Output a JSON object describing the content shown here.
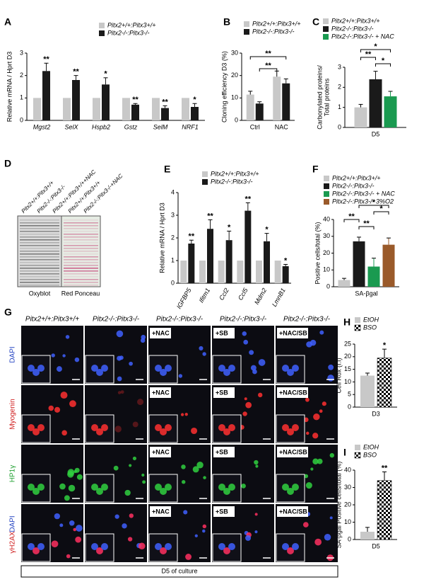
{
  "chart_data": [
    {
      "type": "bar",
      "label": "A",
      "ylabel": [
        "Relative mRNA / Hprt D3"
      ],
      "italic": true,
      "categories": [
        "Mgst2",
        "SelX",
        "Hspb2",
        "Gstz",
        "SelM",
        "NRF1"
      ],
      "series": [
        {
          "name": "Pitx2+/+:Pitx3+/+",
          "color": "#c8c8c8",
          "values": [
            1,
            1,
            1,
            1,
            1,
            1
          ],
          "errors": [
            0,
            0,
            0,
            0,
            0,
            0
          ]
        },
        {
          "name": "Pitx2-/-:Pitx3-/-",
          "color": "#1a1a1a",
          "values": [
            2.2,
            1.8,
            1.6,
            0.7,
            0.55,
            0.6
          ],
          "errors": [
            0.35,
            0.2,
            0.3,
            0.05,
            0.1,
            0.15
          ]
        }
      ],
      "annotations": [
        "**",
        "**",
        "*",
        "**",
        "**",
        "*"
      ],
      "ylim": [
        0,
        3
      ],
      "yticks": [
        0,
        1,
        2,
        3
      ]
    },
    {
      "type": "bar",
      "label": "B",
      "ylabel": [
        "Cloning efficiency D3 (%)"
      ],
      "italic": false,
      "categories": [
        "Ctrl",
        "NAC"
      ],
      "series": [
        {
          "name": "Pitx2+/+:Pitx3+/+",
          "color": "#c8c8c8",
          "values": [
            11.5,
            19.5
          ],
          "errors": [
            1.5,
            2.5
          ]
        },
        {
          "name": "Pitx2-/-:Pitx3-/-",
          "color": "#1a1a1a",
          "values": [
            7.5,
            16.5
          ],
          "errors": [
            0.8,
            2
          ]
        }
      ],
      "annotations": [
        "**",
        "**"
      ],
      "ylim": [
        0,
        30
      ],
      "yticks": [
        0,
        10,
        20,
        30
      ]
    },
    {
      "type": "bar",
      "label": "C",
      "ylabel": [
        "Carbonylated proteins/",
        "Total proteins"
      ],
      "italic": false,
      "categories": [
        "D5"
      ],
      "series": [
        {
          "name": "Pitx2+/+:Pitx3+/+",
          "color": "#c8c8c8",
          "values": [
            1.0
          ],
          "errors": [
            0.15
          ]
        },
        {
          "name": "Pitx2-/-:Pitx3-/-",
          "color": "#1a1a1a",
          "values": [
            2.4
          ],
          "errors": [
            0.4
          ]
        },
        {
          "name": "Pitx2-/-:Pitx3-/- + NAC",
          "color": "#1a9a50",
          "values": [
            1.55
          ],
          "errors": [
            0.25
          ]
        }
      ],
      "annotations": [
        "*",
        "**",
        "*"
      ],
      "ylim": [
        0,
        3
      ],
      "yticks": [
        0,
        1,
        2,
        3
      ]
    },
    {
      "type": "bar",
      "label": "E",
      "ylabel": [
        "Relative mRNA / Hprt D3"
      ],
      "italic": true,
      "categories": [
        "IGFBP5",
        "Ifitm1",
        "Ccl2",
        "Ccl5",
        "Mdm2",
        "LmnB1"
      ],
      "series": [
        {
          "name": "Pitx2+/+:Pitx3+/+",
          "color": "#c8c8c8",
          "values": [
            1,
            1,
            1,
            1,
            1,
            1
          ],
          "errors": [
            0,
            0,
            0,
            0,
            0,
            0
          ]
        },
        {
          "name": "Pitx2-/-:Pitx3-/-",
          "color": "#1a1a1a",
          "values": [
            1.75,
            2.4,
            1.9,
            3.2,
            1.85,
            0.75
          ],
          "errors": [
            0.15,
            0.4,
            0.4,
            0.35,
            0.35,
            0.08
          ]
        }
      ],
      "annotations": [
        "**",
        "**",
        "*",
        "**",
        "*",
        "*"
      ],
      "ylim": [
        0,
        4
      ],
      "yticks": [
        0,
        1,
        2,
        3,
        4
      ]
    },
    {
      "type": "bar",
      "label": "F",
      "ylabel": [
        "Positive cells/total (%)"
      ],
      "italic": false,
      "categories": [
        "SA-βgal"
      ],
      "series": [
        {
          "name": "Pitx2+/+:Pitx3+/+",
          "color": "#c8c8c8",
          "values": [
            4
          ],
          "errors": [
            1
          ]
        },
        {
          "name": "Pitx2-/-:Pitx3-/-",
          "color": "#1a1a1a",
          "values": [
            27
          ],
          "errors": [
            2.5
          ]
        },
        {
          "name": "Pitx2-/-:Pitx3-/- + NAC",
          "color": "#1a9a50",
          "values": [
            12
          ],
          "errors": [
            5
          ]
        },
        {
          "name": "Pitx2-/-:Pitx3-/- 3%O2",
          "color": "#9a5a2a",
          "values": [
            25
          ],
          "errors": [
            4
          ]
        }
      ],
      "annotations": [
        "*",
        "*",
        "**",
        "**"
      ],
      "ylim": [
        0,
        40
      ],
      "yticks": [
        0,
        10,
        20,
        30,
        40
      ]
    },
    {
      "type": "bar",
      "label": "H",
      "ylabel": [
        "Cell Rox (f.I)"
      ],
      "italic": false,
      "categories": [
        "D3"
      ],
      "series": [
        {
          "name": "EtOH",
          "color": "#c8c8c8",
          "values": [
            12.5
          ],
          "errors": [
            1
          ]
        },
        {
          "name": "BSO",
          "color": "#000000",
          "pattern": "checkerboard",
          "values": [
            19.5
          ],
          "errors": [
            3.5
          ]
        }
      ],
      "annotations": [
        "*"
      ],
      "ylim": [
        0,
        25
      ],
      "yticks": [
        0,
        5,
        10,
        15,
        20,
        25
      ]
    },
    {
      "type": "bar",
      "label": "I",
      "ylabel": [
        "SA-βgal Positive cells/total (%)"
      ],
      "italic": false,
      "categories": [
        "D5"
      ],
      "series": [
        {
          "name": "EtOH",
          "color": "#c8c8c8",
          "values": [
            4.5
          ],
          "errors": [
            2.5
          ]
        },
        {
          "name": "BSO",
          "color": "#000000",
          "pattern": "checkerboard",
          "values": [
            34
          ],
          "errors": [
            5
          ]
        }
      ],
      "annotations": [
        "**"
      ],
      "ylim": [
        0,
        40
      ],
      "yticks": [
        0,
        10,
        20,
        30,
        40
      ]
    }
  ],
  "panels": {
    "D": {
      "label": "D",
      "lanes": [
        "Pitx2+/+:Pitx3+/+",
        "Pitx2-/-:Pitx3-/-",
        "Pitx2+/+:Pitx3+/++NAC",
        "Pitx2+/+:Pitx3+/+",
        "Pitx2-/-:Pitx3-/-+NAC"
      ],
      "blots": [
        "Oxyblot",
        "Red Ponceau"
      ]
    },
    "G": {
      "label": "G",
      "columns": [
        "Pitx2+/+:Pitx3+/+",
        "Pitx2-/-:Pitx3-/-",
        "Pitx2-/-:Pitx3-/-",
        "Pitx2-/-:Pitx3-/-",
        "Pitx2-/-:Pitx3-/-"
      ],
      "tags": [
        "+NAC",
        "+SB",
        "+NAC/SB"
      ],
      "row_labels": [
        [
          "DAPI"
        ],
        [
          "Myogenin"
        ],
        [
          "HP1γ"
        ],
        [
          "DAPI",
          "γH2AX"
        ]
      ],
      "footer": "D5 of culture"
    }
  }
}
